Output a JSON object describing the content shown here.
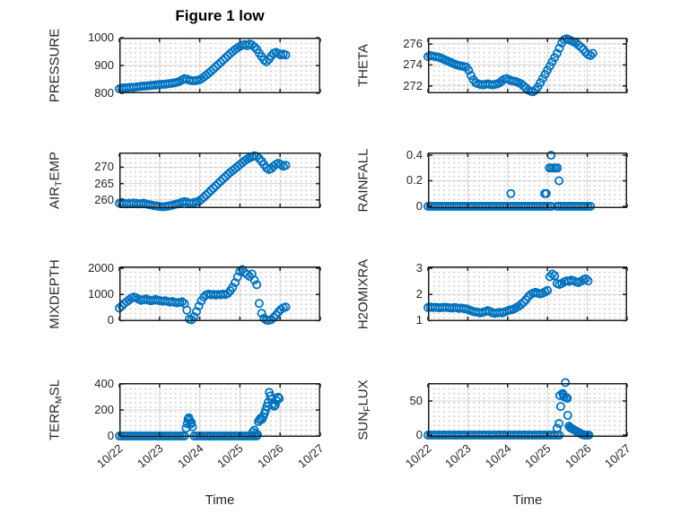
{
  "figure": {
    "title": "Figure 1 low",
    "x_axis": {
      "label": "Time",
      "tick_labels": [
        "10/22",
        "10/23",
        "10/24",
        "10/25",
        "10/26",
        "10/27"
      ],
      "tick_values": [
        0,
        1,
        2,
        3,
        4,
        5
      ],
      "xlim": [
        0,
        5
      ]
    }
  },
  "style": {
    "marker_color": "#0072BD",
    "marker": "open-circle",
    "frame_color": "#1f1f1f",
    "grid_color": "#d6d6d6",
    "minor_grid": "dotted",
    "text_color": "#262626",
    "background": "#ffffff"
  },
  "chart_data": [
    {
      "type": "scatter",
      "name": "PRESSURE",
      "ylabel": "PRESSURE",
      "ylabel_parts": [
        {
          "t": "PRESSURE"
        }
      ],
      "ylim": [
        800,
        1000
      ],
      "yticks": [
        800,
        900,
        1000
      ],
      "ytick_labels": [
        "800",
        "900",
        "1000"
      ],
      "runs": [
        {
          "x0": 0,
          "dx": 0.06,
          "y": [
            816,
            818,
            820,
            819,
            821,
            822,
            821,
            823,
            824,
            825,
            826,
            826,
            827,
            828,
            829,
            830,
            831,
            832,
            832,
            833,
            834,
            835,
            836,
            838,
            840,
            843,
            848,
            853,
            851,
            847,
            845,
            845,
            846,
            848,
            852,
            858,
            865,
            872,
            879,
            887,
            895,
            903,
            911,
            919,
            927,
            935,
            943,
            950,
            957,
            963,
            969,
            973,
            975,
            971,
            977,
            974,
            967,
            958,
            945,
            932,
            920,
            914,
            922,
            934,
            944,
            947,
            943,
            938,
            941,
            938
          ]
        }
      ]
    },
    {
      "type": "scatter",
      "name": "THETA",
      "ylabel": "THETA",
      "ylabel_parts": [
        {
          "t": "THETA"
        }
      ],
      "ylim": [
        271.3,
        276.6
      ],
      "yticks": [
        272,
        274,
        276
      ],
      "ytick_labels": [
        "272",
        "274",
        "276"
      ],
      "runs": [
        {
          "x0": 0,
          "dx": 0.06,
          "y": [
            274.8,
            274.9,
            274.85,
            274.8,
            274.75,
            274.7,
            274.6,
            274.5,
            274.4,
            274.3,
            274.2,
            274.1,
            274.0,
            273.95,
            273.9,
            273.85,
            273.8,
            273.5,
            273.0,
            272.6,
            272.3,
            272.2,
            272.15,
            272.1,
            272.15,
            272.2,
            272.15,
            272.1,
            272.15,
            272.2,
            272.3,
            272.5,
            272.65,
            272.7,
            272.6,
            272.5,
            272.45,
            272.4,
            272.3,
            272.2,
            272.0,
            271.8,
            271.6,
            271.5,
            271.45,
            271.6,
            271.9,
            272.3,
            272.7,
            273.1,
            273.5,
            273.9,
            274.3,
            274.7,
            275.1,
            275.6,
            276.1,
            276.4,
            276.5,
            276.4,
            276.3,
            276.2,
            276.1,
            275.9,
            275.7,
            275.5,
            275.2,
            275.0,
            274.9,
            275.1
          ]
        }
      ]
    },
    {
      "type": "scatter",
      "name": "AIR_TEMP",
      "ylabel": "AIR_TEMP",
      "ylabel_parts": [
        {
          "t": "AIR"
        },
        {
          "t": "T",
          "sub": true
        },
        {
          "t": "EMP"
        }
      ],
      "ylim": [
        257.5,
        274.5
      ],
      "yticks": [
        260,
        265,
        270
      ],
      "ytick_labels": [
        "260",
        "265",
        "270"
      ],
      "runs": [
        {
          "x0": 0,
          "dx": 0.06,
          "y": [
            259.0,
            259.2,
            259.0,
            258.8,
            259.0,
            258.9,
            259.1,
            259.0,
            258.8,
            258.9,
            259.0,
            258.8,
            258.6,
            258.5,
            258.3,
            258.2,
            258.1,
            258.0,
            257.9,
            258.0,
            258.1,
            258.2,
            258.4,
            258.6,
            258.8,
            259.0,
            259.3,
            259.5,
            259.3,
            259.1,
            259.0,
            259.2,
            259.4,
            259.6,
            260.2,
            260.8,
            261.5,
            262.2,
            262.9,
            263.6,
            264.3,
            265.0,
            265.7,
            266.4,
            267.1,
            267.8,
            268.4,
            269.0,
            269.6,
            270.2,
            270.8,
            271.4,
            272.0,
            272.5,
            272.9,
            273.2,
            273.5,
            273.3,
            272.7,
            271.8,
            270.8,
            269.8,
            269.3,
            269.6,
            270.3,
            270.9,
            271.2,
            270.8,
            270.3,
            270.6
          ]
        }
      ]
    },
    {
      "type": "scatter",
      "name": "RAINFALL",
      "ylabel": "RAINFALL",
      "ylabel_parts": [
        {
          "t": "RAINFALL"
        }
      ],
      "ylim": [
        -0.014,
        0.421
      ],
      "yticks": [
        0,
        0.2,
        0.4
      ],
      "ytick_labels": [
        "0",
        "0.2",
        "0.4"
      ],
      "runs": [
        {
          "x0": 0,
          "dx": 0.06,
          "n": 52,
          "const": 0
        },
        {
          "points": [
            [
              3.1,
              0
            ],
            [
              2.08,
              0.1
            ],
            [
              2.93,
              0.1
            ],
            [
              2.97,
              0.1
            ],
            [
              3.09,
              0.4
            ],
            [
              3.05,
              0.3
            ],
            [
              3.1,
              0.3
            ],
            [
              3.15,
              0.3
            ],
            [
              3.2,
              0.3
            ],
            [
              3.25,
              0.3
            ],
            [
              3.29,
              0.2
            ]
          ]
        },
        {
          "x0": 3.24,
          "dx": 0.06,
          "n": 15,
          "const": 0
        }
      ]
    },
    {
      "type": "scatter",
      "name": "MIXDEPTH",
      "ylabel": "MIXDEPTH",
      "ylabel_parts": [
        {
          "t": "MIXDEPTH"
        }
      ],
      "ylim": [
        -20,
        2070
      ],
      "yticks": [
        0,
        1000,
        2000
      ],
      "ytick_labels": [
        "0",
        "1000",
        "2000"
      ],
      "runs": [
        {
          "x0": 0,
          "dx": 0.06,
          "y": [
            480,
            560,
            650,
            720,
            790,
            860,
            900,
            870,
            820,
            780,
            800,
            830,
            790,
            760,
            780,
            810,
            780,
            760,
            740,
            760,
            730,
            710,
            730,
            700,
            680,
            700,
            720,
            650,
            400,
            60,
            30,
            150,
            350,
            560,
            750,
            900,
            980,
            1010,
            990,
            1000,
            980,
            1000,
            990,
            1010,
            1000,
            1040,
            1140,
            1270,
            1450,
            1670,
            1880,
            1950,
            1830,
            1760,
            1690,
            1780,
            1550,
            1370,
            660,
            280,
            90,
            20,
            10,
            40,
            110,
            210,
            330,
            430,
            490,
            520
          ]
        }
      ]
    },
    {
      "type": "scatter",
      "name": "H2OMIXRA",
      "ylabel": "H2OMIXRA",
      "ylabel_parts": [
        {
          "t": "H2OMIXRA"
        }
      ],
      "ylim": [
        0.98,
        3.07
      ],
      "yticks": [
        1,
        2,
        3
      ],
      "ytick_labels": [
        "1",
        "2",
        "3"
      ],
      "runs": [
        {
          "x0": 0,
          "dx": 0.06,
          "y": [
            1.5,
            1.52,
            1.5,
            1.51,
            1.5,
            1.49,
            1.5,
            1.51,
            1.5,
            1.49,
            1.48,
            1.5,
            1.49,
            1.47,
            1.48,
            1.46,
            1.45,
            1.42,
            1.38,
            1.35,
            1.33,
            1.32,
            1.3,
            1.32,
            1.35,
            1.38,
            1.35,
            1.3,
            1.28,
            1.3,
            1.32,
            1.3,
            1.33,
            1.36,
            1.4,
            1.42,
            1.45,
            1.5,
            1.55,
            1.62,
            1.7,
            1.8,
            1.92,
            2.0,
            2.05,
            2.08,
            2.05,
            2.02,
            2.05,
            2.1,
            2.15,
            2.68,
            2.78,
            2.72,
            2.42,
            2.38,
            2.42,
            2.48,
            2.52,
            2.5,
            2.55,
            2.52,
            2.48,
            2.45,
            2.5,
            2.56,
            2.6,
            2.52
          ]
        }
      ]
    },
    {
      "type": "scatter",
      "name": "TERR_MSL",
      "ylabel": "TERR_MSL",
      "ylabel_parts": [
        {
          "t": "TERR"
        },
        {
          "t": "M",
          "sub": true
        },
        {
          "t": "SL"
        }
      ],
      "ylim": [
        -7,
        407
      ],
      "yticks": [
        0,
        200,
        400
      ],
      "ytick_labels": [
        "0",
        "200",
        "400"
      ],
      "runs": [
        {
          "x0": 0,
          "dx": 0.06,
          "n": 28,
          "const": 0
        },
        {
          "points": [
            [
              1.66,
              60
            ],
            [
              1.69,
              95
            ],
            [
              1.71,
              130
            ],
            [
              1.73,
              140
            ],
            [
              1.75,
              120
            ],
            [
              1.77,
              90
            ],
            [
              1.79,
              105
            ],
            [
              1.82,
              70
            ]
          ]
        },
        {
          "x0": 1.86,
          "dx": 0.06,
          "n": 27,
          "const": 0
        },
        {
          "points": [
            [
              3.32,
              30
            ],
            [
              3.36,
              45
            ],
            [
              3.4,
              20
            ],
            [
              3.44,
              8
            ],
            [
              3.46,
              110
            ],
            [
              3.49,
              125
            ],
            [
              3.52,
              138
            ],
            [
              3.55,
              128
            ],
            [
              3.58,
              148
            ],
            [
              3.61,
              172
            ],
            [
              3.64,
              198
            ],
            [
              3.67,
              228
            ],
            [
              3.7,
              258
            ],
            [
              3.73,
              335
            ],
            [
              3.76,
              308
            ],
            [
              3.79,
              282
            ],
            [
              3.82,
              248
            ],
            [
              3.85,
              228
            ],
            [
              3.88,
              238
            ],
            [
              3.91,
              272
            ],
            [
              3.95,
              298
            ],
            [
              3.98,
              288
            ]
          ]
        }
      ]
    },
    {
      "type": "scatter",
      "name": "SUN_FLUX",
      "ylabel": "SUN_FLUX",
      "ylabel_parts": [
        {
          "t": "SUN"
        },
        {
          "t": "F",
          "sub": true
        },
        {
          "t": "LUX"
        }
      ],
      "ylim": [
        -2.6,
        76.3
      ],
      "yticks": [
        0,
        50
      ],
      "ytick_labels": [
        "0",
        "50"
      ],
      "runs": [
        {
          "x0": 0,
          "dx": 0.06,
          "n": 56,
          "const": 0
        },
        {
          "points": [
            [
              3.24,
              10
            ],
            [
              3.29,
              17
            ],
            [
              3.31,
              58
            ],
            [
              3.33,
              42
            ],
            [
              3.38,
              61
            ],
            [
              3.4,
              59
            ],
            [
              3.42,
              56
            ],
            [
              3.45,
              77
            ],
            [
              3.47,
              55
            ],
            [
              3.5,
              54
            ],
            [
              3.51,
              29
            ],
            [
              3.54,
              13
            ],
            [
              3.57,
              11
            ],
            [
              3.6,
              10
            ],
            [
              3.63,
              9
            ],
            [
              3.66,
              8
            ],
            [
              3.69,
              7
            ],
            [
              3.72,
              6
            ],
            [
              3.75,
              5
            ],
            [
              3.78,
              4
            ],
            [
              3.81,
              3
            ],
            [
              3.84,
              2
            ],
            [
              3.87,
              1
            ],
            [
              3.9,
              0.5
            ],
            [
              3.93,
              0
            ],
            [
              3.96,
              0
            ],
            [
              4.0,
              0
            ],
            [
              4.04,
              0
            ]
          ]
        }
      ]
    }
  ]
}
